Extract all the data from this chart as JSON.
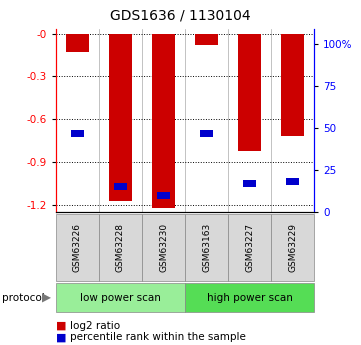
{
  "title": "GDS1636 / 1130104",
  "samples": [
    "GSM63226",
    "GSM63228",
    "GSM63230",
    "GSM63163",
    "GSM63227",
    "GSM63229"
  ],
  "log2_ratio": [
    -0.13,
    -1.17,
    -1.22,
    -0.08,
    -0.82,
    -0.72
  ],
  "percentile_rank": [
    47,
    15,
    10,
    47,
    17,
    18
  ],
  "groups": [
    {
      "label": "low power scan",
      "samples": [
        0,
        1,
        2
      ],
      "color": "#99ee99"
    },
    {
      "label": "high power scan",
      "samples": [
        3,
        4,
        5
      ],
      "color": "#55dd55"
    }
  ],
  "protocol_label": "protocol",
  "ylim_left": [
    -1.25,
    0.03
  ],
  "ylim_right": [
    0,
    108.75
  ],
  "yticks_left": [
    0,
    -0.3,
    -0.6,
    -0.9,
    -1.2
  ],
  "yticks_right": [
    0,
    25,
    50,
    75,
    100
  ],
  "bar_color_red": "#cc0000",
  "bar_color_blue": "#0000cc",
  "bar_width": 0.55,
  "bg_color": "#ffffff",
  "legend_red": "log2 ratio",
  "legend_blue": "percentile rank within the sample"
}
